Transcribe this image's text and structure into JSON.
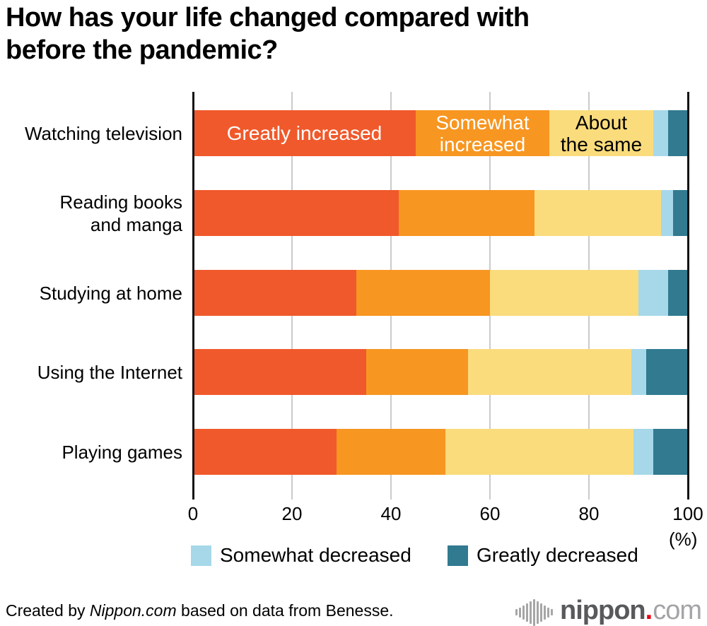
{
  "chart_data": {
    "type": "bar",
    "stacked": true,
    "orientation": "horizontal",
    "title": "How has your life changed compared with\nbefore the pandemic?",
    "unit_label": "(%)",
    "xlim": [
      0,
      100
    ],
    "x_ticks": [
      0,
      20,
      40,
      60,
      80,
      100
    ],
    "grid": "vertical, light gray at 20/40/60/80, black axis lines at 0 and 100",
    "categories": [
      "Watching television",
      "Reading books\nand manga",
      "Studying at home",
      "Using the Internet",
      "Playing games"
    ],
    "series": [
      {
        "name": "Greatly increased",
        "color": "#F0592B",
        "inline_label": "Greatly increased",
        "inline_label_color": "#ffffff",
        "values": [
          45,
          41.5,
          33,
          35,
          29
        ]
      },
      {
        "name": "Somewhat increased",
        "color": "#F79621",
        "inline_label": "Somewhat\nincreased",
        "inline_label_color": "#ffffff",
        "values": [
          27,
          27.5,
          27,
          20.5,
          22
        ]
      },
      {
        "name": "About the same",
        "color": "#FADC7D",
        "inline_label": "About\nthe same",
        "inline_label_color": "#000000",
        "values": [
          21,
          25.5,
          30,
          33,
          38
        ]
      },
      {
        "name": "Somewhat decreased",
        "color": "#A6D8E9",
        "values": [
          3,
          2.5,
          6,
          3,
          4
        ]
      },
      {
        "name": "Greatly decreased",
        "color": "#317A90",
        "values": [
          4,
          3,
          4,
          8.5,
          7
        ]
      }
    ],
    "legend_position": "bottom"
  },
  "legend": [
    {
      "label": "Somewhat decreased",
      "color": "#A6D8E9"
    },
    {
      "label": "Greatly decreased",
      "color": "#317A90"
    }
  ],
  "footer": {
    "prefix": "Created by ",
    "brand": "Nippon.com",
    "suffix": " based on data from Benesse."
  },
  "logo": {
    "name": "nippon",
    "dot": ".",
    "tld": "com"
  }
}
